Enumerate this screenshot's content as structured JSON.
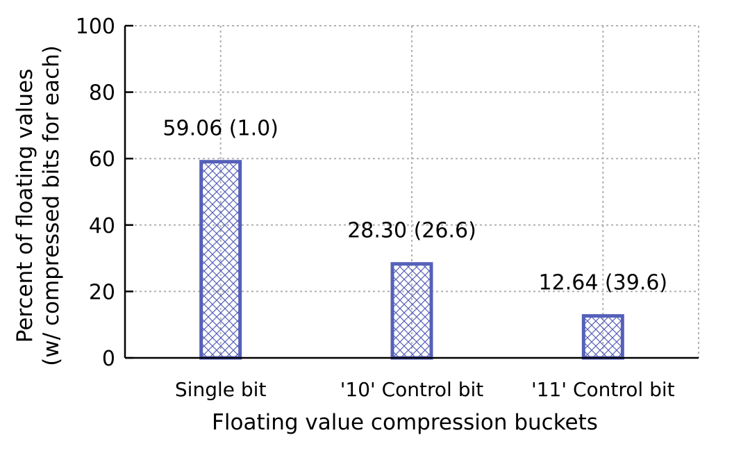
{
  "chart_data": {
    "type": "bar",
    "categories": [
      "Single bit",
      "'10' Control bit",
      "'11' Control bit"
    ],
    "values": [
      59.06,
      28.3,
      12.64
    ],
    "data_labels": [
      "59.06 (1.0)",
      "28.30 (26.6)",
      "12.64 (39.6)"
    ],
    "xlabel": "Floating value compression buckets",
    "ylabel_lines": [
      "Percent of floating values",
      "(w/ compressed bits for each)"
    ],
    "ylim": [
      0,
      100
    ],
    "yticks": [
      0,
      20,
      40,
      60,
      80,
      100
    ],
    "grid": true,
    "bar_fill": "crosshatch",
    "colors": {
      "bar": "#5560b8",
      "axis": "#000000",
      "grid": "#b0b0b0"
    }
  }
}
